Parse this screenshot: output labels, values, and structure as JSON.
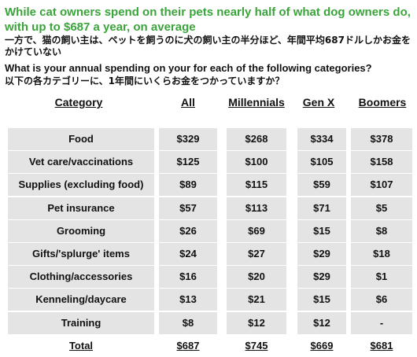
{
  "headline": "While cat owners spend on their pets nearly half of what dog owners do, with up to $687 a year, on average",
  "headline_jp": "一方で、猫の飼い主は、ペットを飼うのに犬の飼い主の半分ほど、年間平均687ドルしかお金をかけていない",
  "question": "What is your annual spending on your for each of the following categories?",
  "question_jp": "以下の各カテゴリーに、1年間にいくらお金をつかっていますか？",
  "chart_data": {
    "type": "table",
    "columns": [
      "Category",
      "All",
      "Millennials",
      "Gen X",
      "Boomers"
    ],
    "rows": [
      {
        "category": "Food",
        "values": [
          "$329",
          "$268",
          "$334",
          "$378"
        ]
      },
      {
        "category": "Vet care/vaccinations",
        "values": [
          "$125",
          "$100",
          "$105",
          "$158"
        ]
      },
      {
        "category": "Supplies (excluding food)",
        "values": [
          "$89",
          "$115",
          "$59",
          "$107"
        ]
      },
      {
        "category": "Pet insurance",
        "values": [
          "$57",
          "$113",
          "$71",
          "$5"
        ]
      },
      {
        "category": "Grooming",
        "values": [
          "$26",
          "$69",
          "$15",
          "$8"
        ]
      },
      {
        "category": "Gifts/'splurge' items",
        "values": [
          "$24",
          "$27",
          "$29",
          "$18"
        ]
      },
      {
        "category": "Clothing/accessories",
        "values": [
          "$16",
          "$20",
          "$29",
          "$1"
        ]
      },
      {
        "category": "Kenneling/daycare",
        "values": [
          "$13",
          "$21",
          "$15",
          "$6"
        ]
      },
      {
        "category": "Training",
        "values": [
          "$8",
          "$12",
          "$12",
          "-"
        ]
      }
    ],
    "total": {
      "category": "Total",
      "values": [
        "$687",
        "$745",
        "$669",
        "$681"
      ]
    }
  },
  "colors": {
    "headline": "#3aa43a",
    "row_background": "#e4e4e4",
    "text": "#111111"
  }
}
